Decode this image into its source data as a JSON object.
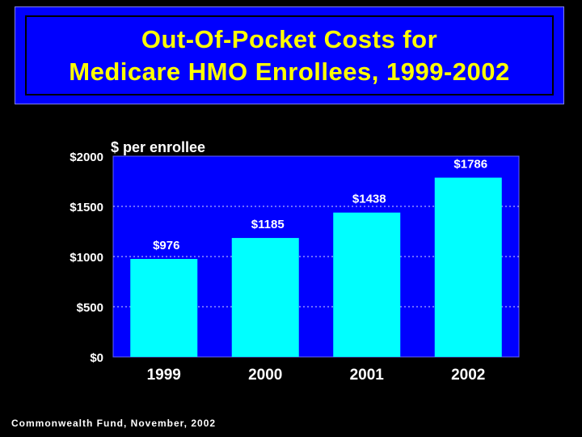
{
  "title": {
    "line1": "Out-Of-Pocket Costs for",
    "line2": "Medicare HMO Enrollees, 1999-2002"
  },
  "source": "Commonwealth Fund, November, 2002",
  "colors": {
    "title_bg": "#0000FF",
    "title_text": "#FFFF00",
    "plot_bg": "#0000FF",
    "bar": "#00FFFF",
    "text": "#FFFFFF"
  },
  "chart_data": {
    "type": "bar",
    "ylabel": "$ per enrollee",
    "categories": [
      "1999",
      "2000",
      "2001",
      "2002"
    ],
    "values": [
      976,
      1185,
      1438,
      1786
    ],
    "data_labels": [
      "$976",
      "$1185",
      "$1438",
      "$1786"
    ],
    "yticks": [
      0,
      500,
      1000,
      1500,
      2000
    ],
    "ytick_labels": [
      "$0",
      "$500",
      "$1000",
      "$1500",
      "$2000"
    ],
    "ylim": [
      0,
      2000
    ],
    "grid": true
  }
}
